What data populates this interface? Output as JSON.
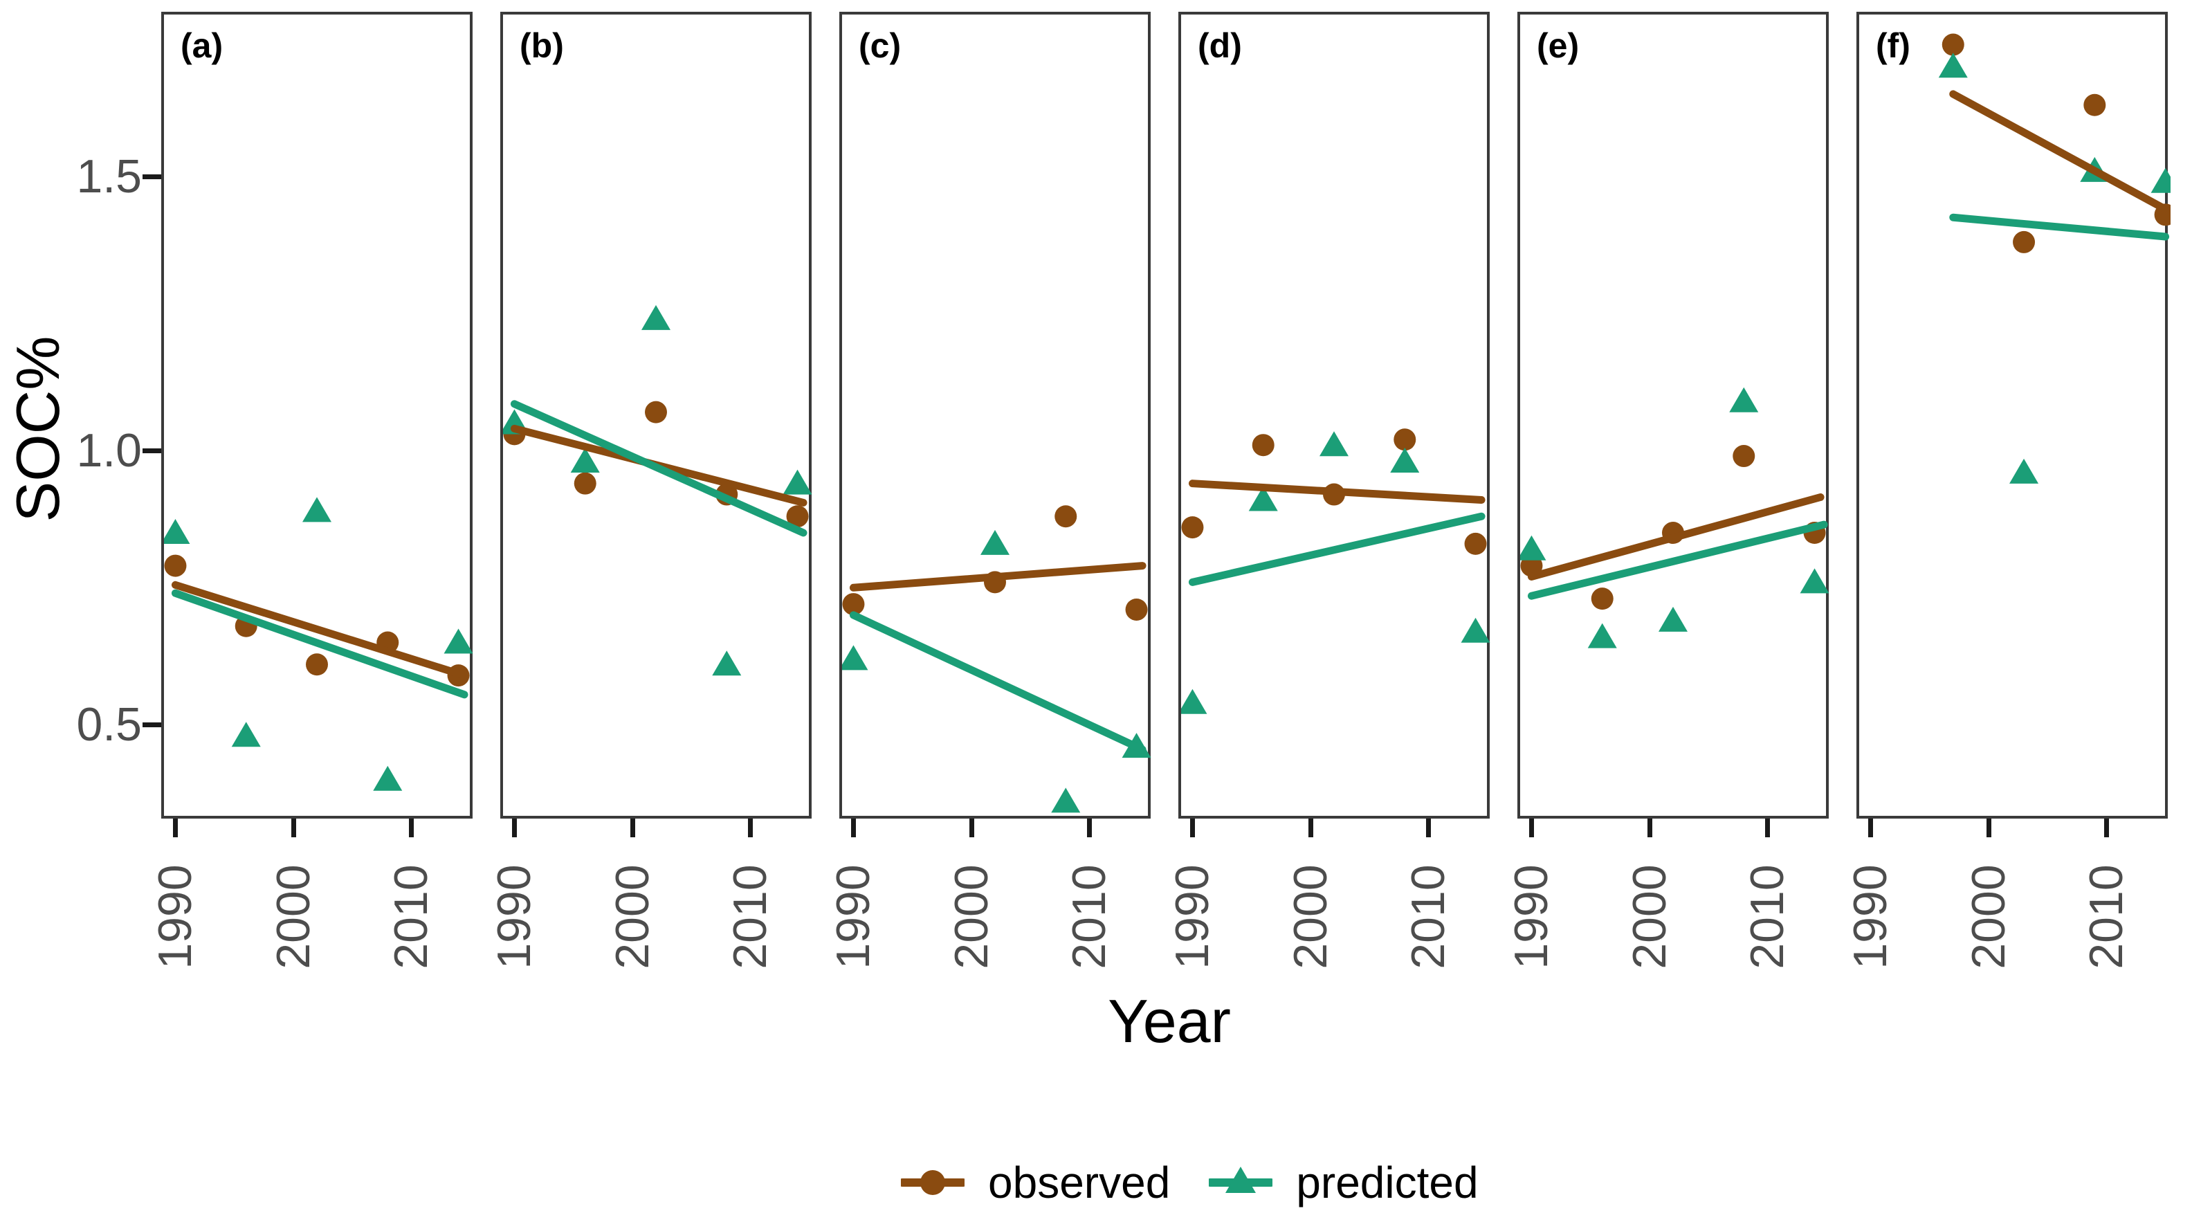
{
  "figure": {
    "y_axis": {
      "title": "SOC%",
      "tick_labels": [
        "1.5",
        "1.0",
        "0.5"
      ],
      "tick_values": [
        1.5,
        1.0,
        0.5
      ]
    },
    "x_axis": {
      "title": "Year",
      "tick_labels": [
        "1990",
        "2000",
        "2010"
      ],
      "tick_values": [
        1990,
        2000,
        2010
      ]
    },
    "legend": [
      {
        "label": "observed",
        "marker": "circle-icon",
        "color": "#8a4b10"
      },
      {
        "label": "predicted",
        "marker": "triangle-icon",
        "color": "#1b9e77"
      }
    ],
    "colors": {
      "observed": "#8a4b10",
      "predicted": "#1b9e77",
      "axis_text": "#4d4d4d",
      "panel_border": "#3a3a3a",
      "tick_mark": "#1a1a1a"
    }
  },
  "chart_data": {
    "type": "scatter",
    "title": "",
    "xlabel": "Year",
    "ylabel": "SOC%",
    "x_domain": [
      1988.8,
      2015.2
    ],
    "y_domain": [
      0.329,
      1.8
    ],
    "x_ticks": [
      1990,
      2000,
      2010
    ],
    "y_ticks": [
      0.5,
      1.0,
      1.5
    ],
    "grid": false,
    "legend_position": "bottom",
    "series_names": [
      "observed",
      "predicted"
    ],
    "panels": [
      {
        "label": "(a)",
        "years": [
          1990,
          1996,
          2002,
          2008,
          2014
        ],
        "observed": [
          0.79,
          0.68,
          0.61,
          0.65,
          0.59
        ],
        "predicted": [
          0.85,
          0.48,
          0.89,
          0.4,
          0.65
        ],
        "observed_trend": {
          "x": [
            1990,
            2014.5
          ],
          "y": [
            0.755,
            0.59
          ]
        },
        "predicted_trend": {
          "x": [
            1990,
            2014.5
          ],
          "y": [
            0.74,
            0.555
          ]
        }
      },
      {
        "label": "(b)",
        "years": [
          1990,
          1996,
          2002,
          2008,
          2014
        ],
        "observed": [
          1.03,
          0.94,
          1.07,
          0.92,
          0.88
        ],
        "predicted": [
          1.05,
          0.98,
          1.24,
          0.61,
          0.94
        ],
        "observed_trend": {
          "x": [
            1990,
            2014.5
          ],
          "y": [
            1.04,
            0.905
          ]
        },
        "predicted_trend": {
          "x": [
            1990,
            2014.5
          ],
          "y": [
            1.085,
            0.85
          ]
        }
      },
      {
        "label": "(c)",
        "years": [
          1990,
          2002,
          2008,
          2014
        ],
        "observed": [
          0.72,
          0.76,
          0.88,
          0.71
        ],
        "predicted": [
          0.62,
          0.83,
          0.36,
          0.46
        ],
        "observed_trend": {
          "x": [
            1990,
            2014.5
          ],
          "y": [
            0.75,
            0.79
          ]
        },
        "predicted_trend": {
          "x": [
            1990,
            2014.5
          ],
          "y": [
            0.7,
            0.455
          ]
        }
      },
      {
        "label": "(d)",
        "years": [
          1990,
          1996,
          2002,
          2008,
          2014
        ],
        "observed": [
          0.86,
          1.01,
          0.92,
          1.02,
          0.83
        ],
        "predicted": [
          0.54,
          0.91,
          1.01,
          0.98,
          0.67
        ],
        "observed_trend": {
          "x": [
            1990,
            2014.5
          ],
          "y": [
            0.94,
            0.91
          ]
        },
        "predicted_trend": {
          "x": [
            1990,
            2014.5
          ],
          "y": [
            0.76,
            0.88
          ]
        }
      },
      {
        "label": "(e)",
        "years": [
          1990,
          1996,
          2002,
          2008,
          2014
        ],
        "observed": [
          0.79,
          0.73,
          0.85,
          0.99,
          0.85
        ],
        "predicted": [
          0.82,
          0.66,
          0.69,
          1.09,
          0.76
        ],
        "observed_trend": {
          "x": [
            1990,
            2014.5
          ],
          "y": [
            0.77,
            0.915
          ]
        },
        "predicted_trend": {
          "x": [
            1990,
            2014.8
          ],
          "y": [
            0.735,
            0.865
          ]
        }
      },
      {
        "label": "(f)",
        "years": [
          1997,
          2003,
          2009,
          2015
        ],
        "observed": [
          1.74,
          1.38,
          1.63,
          1.43
        ],
        "predicted": [
          1.7,
          0.96,
          1.51,
          1.49
        ],
        "observed_trend": {
          "x": [
            1997,
            2015
          ],
          "y": [
            1.65,
            1.44
          ]
        },
        "predicted_trend": {
          "x": [
            1997,
            2015
          ],
          "y": [
            1.425,
            1.39
          ]
        }
      }
    ]
  }
}
